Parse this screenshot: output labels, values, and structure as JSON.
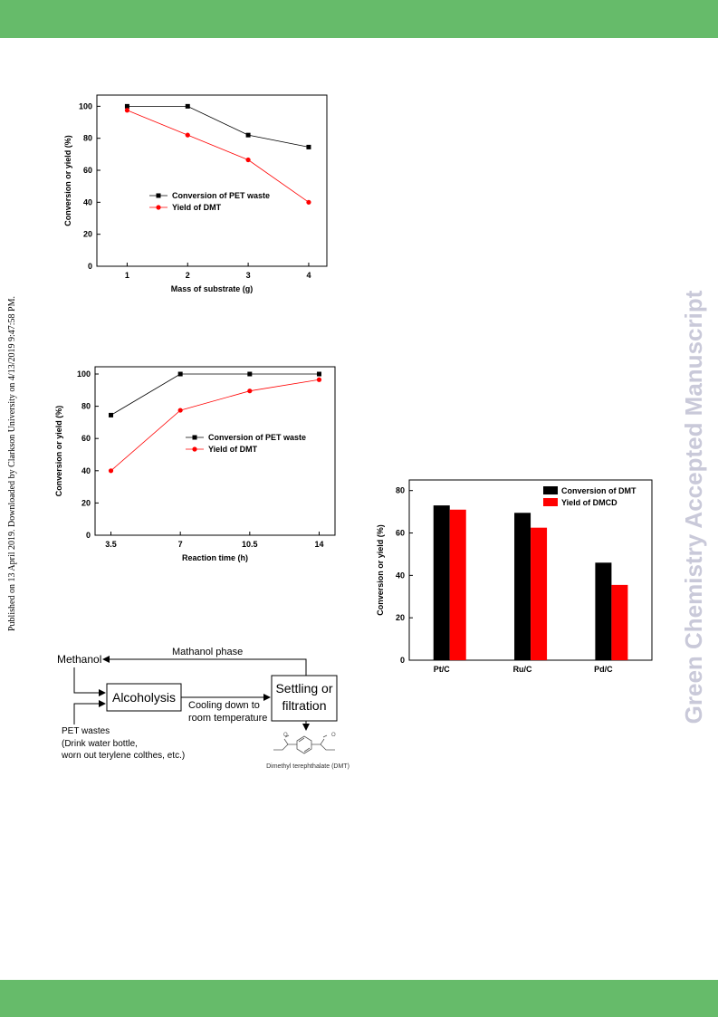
{
  "side_note": "Published on 13 April 2019. Downloaded by Clarkson University on 4/13/2019 9:47:58 PM.",
  "watermark": "Green Chemistry Accepted Manuscript",
  "chart_data": [
    {
      "type": "line",
      "x_label": "Mass of substrate (g)",
      "y_label": "Conversion or yield (%)",
      "x": [
        1,
        2,
        3,
        4
      ],
      "xlim": [
        0.5,
        4.3
      ],
      "xticks": [
        1,
        2,
        3,
        4
      ],
      "ylim": [
        0,
        107
      ],
      "yticks": [
        0,
        20,
        40,
        60,
        80,
        100
      ],
      "series": [
        {
          "name": "Conversion of PET waste",
          "color": "#000000",
          "marker": "square",
          "values": [
            100,
            100,
            82,
            74.5
          ]
        },
        {
          "name": "Yield of DMT",
          "color": "#ff0000",
          "marker": "circle",
          "values": [
            97.5,
            82,
            66.5,
            40
          ]
        }
      ]
    },
    {
      "type": "line",
      "x_label": "Reaction time (h)",
      "y_label": "Conversion or yield (%)",
      "x": [
        3.5,
        7,
        10.5,
        14
      ],
      "xlim": [
        2.7,
        14.8
      ],
      "xticks": [
        3.5,
        7,
        10.5,
        14
      ],
      "ylim": [
        0,
        104.5
      ],
      "yticks": [
        0,
        20,
        40,
        60,
        80,
        100
      ],
      "series": [
        {
          "name": "Conversion of PET waste",
          "color": "#000000",
          "marker": "square",
          "values": [
            74.5,
            100,
            100,
            100
          ]
        },
        {
          "name": "Yield of DMT",
          "color": "#ff0000",
          "marker": "circle",
          "values": [
            40,
            77.5,
            89.5,
            96.5
          ]
        }
      ]
    },
    {
      "type": "bar",
      "y_label": "Conversion or yield (%)",
      "categories": [
        "Pt/C",
        "Ru/C",
        "Pd/C"
      ],
      "ylim": [
        0,
        85
      ],
      "yticks": [
        0,
        20,
        40,
        60,
        80
      ],
      "series": [
        {
          "name": "Conversion of DMT",
          "color": "#000000",
          "values": [
            73,
            69.5,
            46
          ]
        },
        {
          "name": "Yield of DMCD",
          "color": "#ff0000",
          "values": [
            71,
            62.5,
            35.5
          ]
        }
      ]
    }
  ],
  "diagram": {
    "methanol": "Methanol",
    "alcoholysis": "Alcoholysis",
    "settling": [
      "Settling or",
      "filtration"
    ],
    "methanol_phase": "Mathanol phase",
    "cooling": [
      "Cooling down to",
      "room temperature"
    ],
    "pet": [
      "PET wastes",
      "(Drink water bottle,",
      "worn out terylene colthes, etc.)"
    ],
    "product": "Dimethyl terephthalate (DMT)"
  }
}
